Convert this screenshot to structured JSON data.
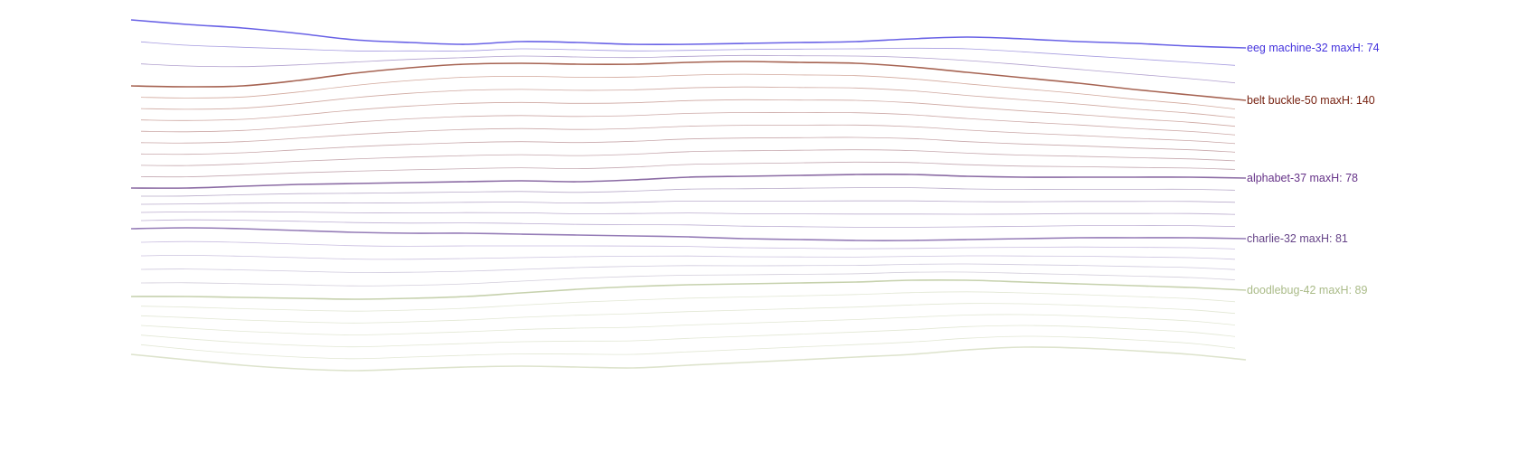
{
  "chart_data": {
    "type": "line",
    "title": "",
    "xlabel": "",
    "ylabel": "",
    "grid": false,
    "legend": "right-inline",
    "x": [
      0,
      1,
      2,
      3,
      4,
      5,
      6,
      7,
      8,
      9,
      10,
      11,
      12,
      13,
      14,
      15,
      16,
      17,
      18,
      19,
      20
    ],
    "series": [
      {
        "name": "eeg machine-32",
        "label": "eeg machine-32 maxH: 74",
        "color": "#4433dd",
        "values": [
          22,
          27,
          31,
          37,
          44,
          47,
          49,
          46,
          47,
          49,
          49,
          48,
          47,
          46,
          43,
          41,
          43,
          46,
          48,
          51,
          53
        ]
      },
      {
        "name": "belt buckle-50",
        "label": "belt buckle-50 maxH: 140",
        "color": "#772211",
        "values": [
          95,
          96,
          95,
          89,
          81,
          75,
          71,
          70,
          71,
          71,
          69,
          68,
          69,
          70,
          74,
          80,
          86,
          92,
          99,
          105,
          111
        ]
      },
      {
        "name": "alphabet-37",
        "label": "alphabet-37 maxH: 78",
        "color": "#663388",
        "values": [
          208,
          208,
          206,
          204,
          203,
          202,
          201,
          200,
          201,
          199,
          196,
          195,
          194,
          193,
          193,
          195,
          196,
          196,
          196,
          196,
          197
        ]
      },
      {
        "name": "charlie-32",
        "label": "charlie-32 maxH: 81",
        "color": "#664488",
        "values": [
          253,
          252,
          253,
          255,
          257,
          258,
          258,
          259,
          260,
          261,
          262,
          264,
          265,
          266,
          266,
          265,
          264,
          263,
          263,
          263,
          264
        ]
      },
      {
        "name": "doodlebug-42",
        "label": "doodlebug-42 maxH: 89",
        "color": "#aabb88",
        "values": [
          328,
          328,
          329,
          330,
          331,
          330,
          328,
          324,
          320,
          317,
          315,
          314,
          313,
          312,
          310,
          310,
          312,
          314,
          316,
          318,
          321
        ]
      }
    ],
    "strand_colors": [
      "#8888ee",
      "#cc9988",
      "#aa99bb",
      "#bbaadd",
      "#dde3cc"
    ]
  }
}
